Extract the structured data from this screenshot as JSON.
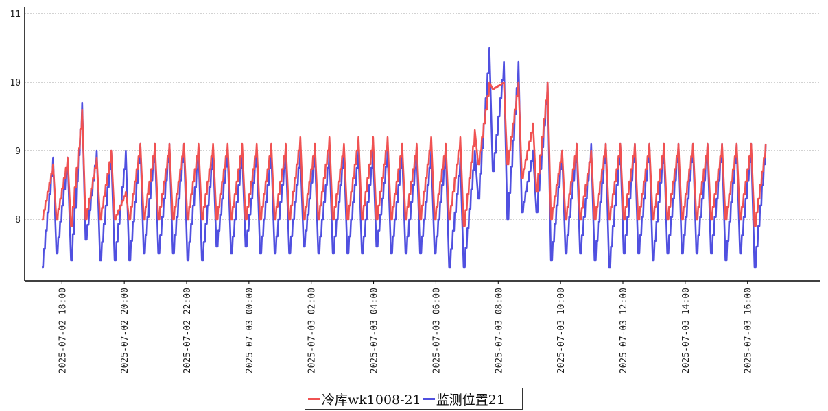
{
  "chart_data": {
    "type": "line",
    "title": "",
    "xlabel": "",
    "ylabel": "",
    "ylim": [
      7.1,
      11.1
    ],
    "yticks": [
      8,
      9,
      10,
      11
    ],
    "grid": true,
    "legend_position": "bottom-center",
    "xticks": [
      "2025-07-02 18:00",
      "2025-07-02 20:00",
      "2025-07-02 22:00",
      "2025-07-03 00:00",
      "2025-07-03 02:00",
      "2025-07-03 04:00",
      "2025-07-03 06:00",
      "2025-07-03 08:00",
      "2025-07-03 10:00",
      "2025-07-03 12:00",
      "2025-07-03 14:00",
      "2025-07-03 16:00"
    ],
    "x_start": "2025-07-02 17:20",
    "x_end": "2025-07-03 17:50",
    "cycle_minutes": 28,
    "series": [
      {
        "name": "冷库wk1008-21",
        "color": "#f05252",
        "peaks": [
          8.8,
          8.9,
          9.6,
          8.9,
          9.0,
          8.4,
          9.1,
          9.1,
          9.1,
          9.1,
          9.1,
          9.1,
          9.1,
          9.1,
          9.1,
          9.1,
          9.1,
          9.2,
          9.1,
          9.2,
          9.1,
          9.2,
          9.2,
          9.2,
          9.1,
          9.1,
          9.2,
          9.1,
          9.2,
          9.3,
          10.0,
          10.0,
          10.0,
          9.4,
          10.0,
          9.0,
          9.1,
          9.0,
          9.1,
          9.1,
          9.1,
          9.1,
          9.1,
          9.1,
          9.1,
          9.1,
          9.1,
          9.1,
          9.1,
          9.1
        ],
        "troughs": [
          8.0,
          8.0,
          7.9,
          8.0,
          8.0,
          8.0,
          8.0,
          8.0,
          8.0,
          8.0,
          8.0,
          8.0,
          8.0,
          8.0,
          8.0,
          8.0,
          8.0,
          8.0,
          8.0,
          8.0,
          8.0,
          8.0,
          8.0,
          8.0,
          8.0,
          8.0,
          8.0,
          8.0,
          8.0,
          7.9,
          8.8,
          9.9,
          8.8,
          8.6,
          8.4,
          8.0,
          8.0,
          8.0,
          8.0,
          8.0,
          8.0,
          8.0,
          8.0,
          8.0,
          8.0,
          8.0,
          8.0,
          8.0,
          8.0,
          7.9
        ]
      },
      {
        "name": "监测位置21",
        "color": "#5050e0",
        "peaks": [
          8.9,
          8.9,
          9.7,
          9.0,
          9.0,
          9.0,
          9.1,
          9.1,
          9.1,
          9.1,
          9.0,
          9.0,
          9.0,
          9.0,
          9.0,
          9.0,
          9.0,
          9.0,
          9.0,
          9.0,
          9.0,
          9.0,
          9.0,
          9.0,
          9.0,
          9.0,
          9.0,
          9.0,
          8.9,
          9.0,
          10.5,
          10.3,
          10.3,
          9.0,
          10.0,
          9.0,
          9.1,
          9.1,
          9.1,
          9.1,
          9.1,
          9.1,
          9.1,
          9.1,
          9.1,
          9.1,
          9.1,
          9.1,
          9.1,
          9.1
        ],
        "troughs": [
          7.3,
          7.5,
          7.4,
          7.7,
          7.4,
          7.4,
          7.4,
          7.5,
          7.5,
          7.5,
          7.4,
          7.4,
          7.6,
          7.5,
          7.6,
          7.5,
          7.5,
          7.5,
          7.6,
          7.5,
          7.5,
          7.5,
          7.5,
          7.6,
          7.5,
          7.5,
          7.5,
          7.5,
          7.3,
          7.3,
          8.3,
          8.7,
          8.0,
          8.1,
          8.1,
          7.4,
          7.5,
          7.5,
          7.4,
          7.3,
          7.5,
          7.5,
          7.4,
          7.5,
          7.5,
          7.5,
          7.5,
          7.4,
          7.5,
          7.3
        ]
      }
    ]
  }
}
